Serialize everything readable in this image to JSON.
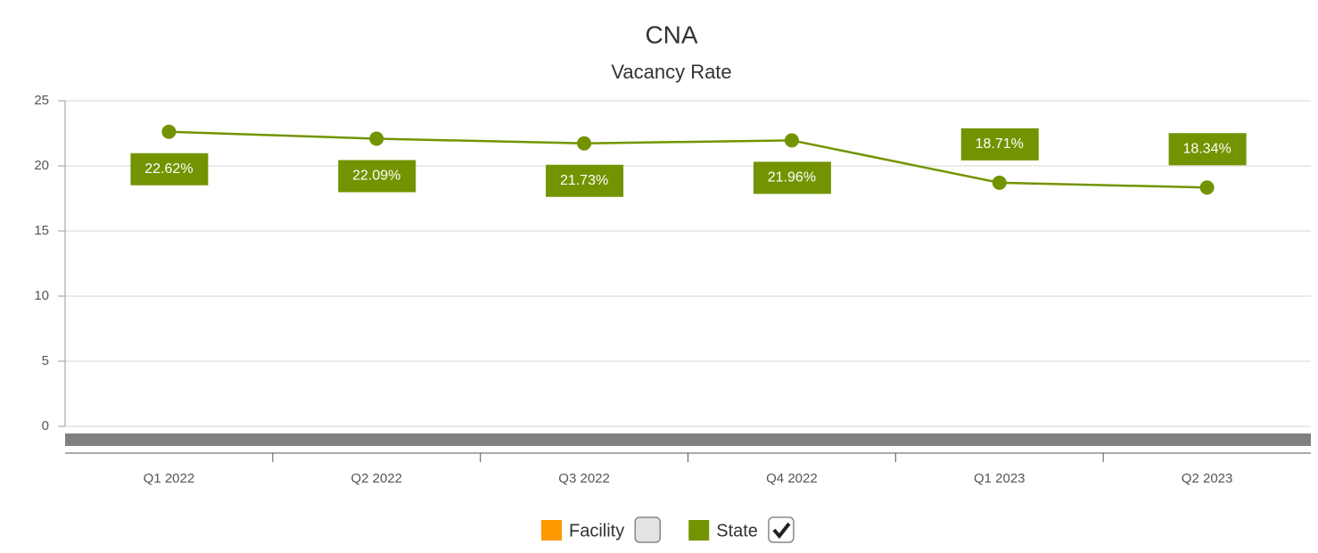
{
  "chart_data": {
    "type": "line",
    "title": "CNA",
    "subtitle": "Vacancy Rate",
    "categories": [
      "Q1 2022",
      "Q2 2022",
      "Q3 2022",
      "Q4 2022",
      "Q1 2023",
      "Q2 2023"
    ],
    "series": [
      {
        "name": "Facility",
        "color": "#ff9900",
        "visible": false
      },
      {
        "name": "State",
        "color": "#739400",
        "visible": true,
        "values": [
          22.62,
          22.09,
          21.73,
          21.96,
          18.71,
          18.34
        ],
        "value_labels": [
          "22.62%",
          "22.09%",
          "21.73%",
          "21.96%",
          "18.71%",
          "18.34%"
        ]
      }
    ],
    "ylim": [
      0,
      25
    ],
    "yticks": [
      0,
      5,
      10,
      15,
      20,
      25
    ],
    "grid": true,
    "legend": "bottom"
  }
}
